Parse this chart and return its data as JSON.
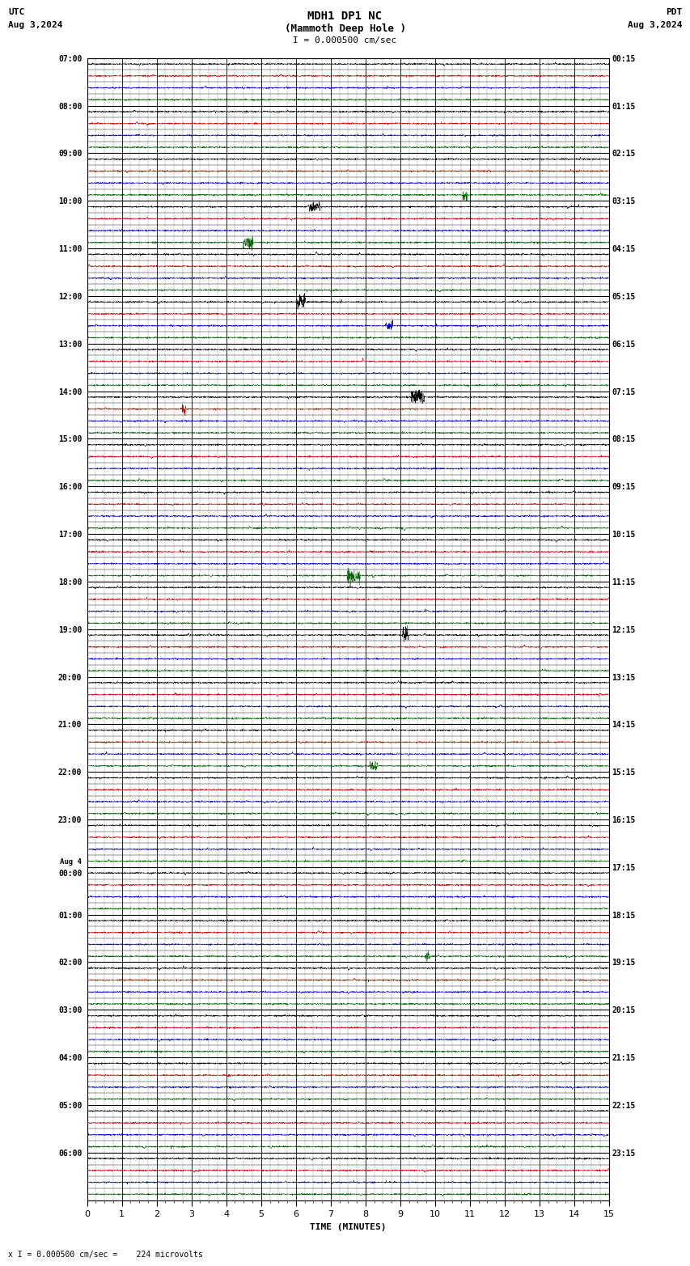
{
  "title_line1": "MDH1 DP1 NC",
  "title_line2": "(Mammoth Deep Hole )",
  "title_scale": "I = 0.000500 cm/sec",
  "left_header1": "UTC",
  "left_header2": "Aug 3,2024",
  "right_header1": "PDT",
  "right_header2": "Aug 3,2024",
  "footer": "x I = 0.000500 cm/sec =    224 microvolts",
  "xlabel": "TIME (MINUTES)",
  "bg_color": "#ffffff",
  "trace_colors": [
    "#000000",
    "#cc0000",
    "#0000cc",
    "#006400"
  ],
  "utc_labels": [
    "07:00",
    "08:00",
    "09:00",
    "10:00",
    "11:00",
    "12:00",
    "13:00",
    "14:00",
    "15:00",
    "16:00",
    "17:00",
    "18:00",
    "19:00",
    "20:00",
    "21:00",
    "22:00",
    "23:00",
    "Aug 4\n00:00",
    "01:00",
    "02:00",
    "03:00",
    "04:00",
    "05:00",
    "06:00"
  ],
  "pdt_labels": [
    "00:15",
    "01:15",
    "02:15",
    "03:15",
    "04:15",
    "05:15",
    "06:15",
    "07:15",
    "08:15",
    "09:15",
    "10:15",
    "11:15",
    "12:15",
    "13:15",
    "14:15",
    "15:15",
    "16:15",
    "17:15",
    "18:15",
    "19:15",
    "20:15",
    "21:15",
    "22:15",
    "23:15"
  ],
  "xmin": 0,
  "xmax": 15,
  "num_rows": 24,
  "num_subtraces": 4,
  "noise_scale": 0.03,
  "spike_prob": 0.002,
  "spike_scale": 0.15,
  "n_pts": 2700,
  "font_size_label": 7,
  "font_size_title": 9,
  "font_size_xlabel": 8,
  "font_size_footer": 7
}
